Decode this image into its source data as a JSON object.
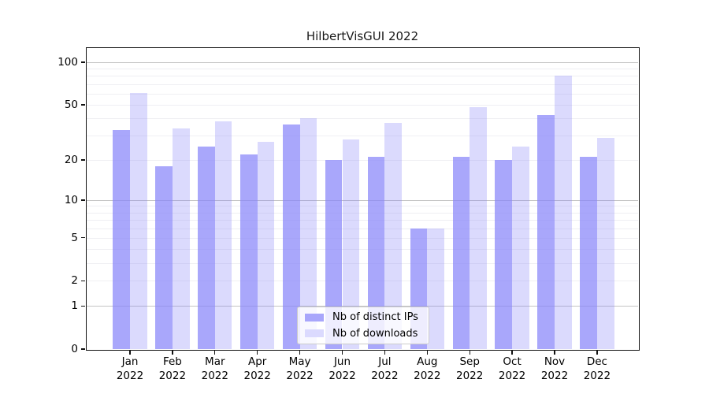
{
  "chart_data": {
    "type": "bar",
    "title": "HilbertVisGUI 2022",
    "year_label": "2022",
    "categories": [
      "Jan",
      "Feb",
      "Mar",
      "Apr",
      "May",
      "Jun",
      "Jul",
      "Aug",
      "Sep",
      "Oct",
      "Nov",
      "Dec"
    ],
    "series": [
      {
        "name": "Nb of distinct IPs",
        "values": [
          33,
          18,
          25,
          22,
          36,
          20,
          21,
          6,
          21,
          20,
          42,
          21
        ],
        "fill": "rgba(136,133,250,0.72)",
        "legend_color": "#a8a6fb"
      },
      {
        "name": "Nb of downloads",
        "values": [
          61,
          34,
          38,
          27,
          40,
          28,
          37,
          6,
          48,
          25,
          80,
          29
        ],
        "fill": "rgba(136,133,250,0.30)",
        "legend_color": "#dbdafe"
      }
    ],
    "y_scale": "log10(1+v)",
    "y_ticks": [
      0,
      1,
      2,
      5,
      10,
      20,
      50,
      100
    ],
    "y_gridlines_major": [
      1,
      10,
      100
    ],
    "y_gridlines_minor": [
      2,
      3,
      4,
      5,
      6,
      7,
      8,
      9,
      20,
      30,
      40,
      50,
      60,
      70,
      80,
      90
    ],
    "ylim": [
      0,
      126
    ],
    "grid": true,
    "legend_position": "bottom-center",
    "colors": {
      "axis": "#111111",
      "grid_major": "#c3c3c3",
      "grid_minor": "#efeff3",
      "background": "#ffffff"
    }
  }
}
